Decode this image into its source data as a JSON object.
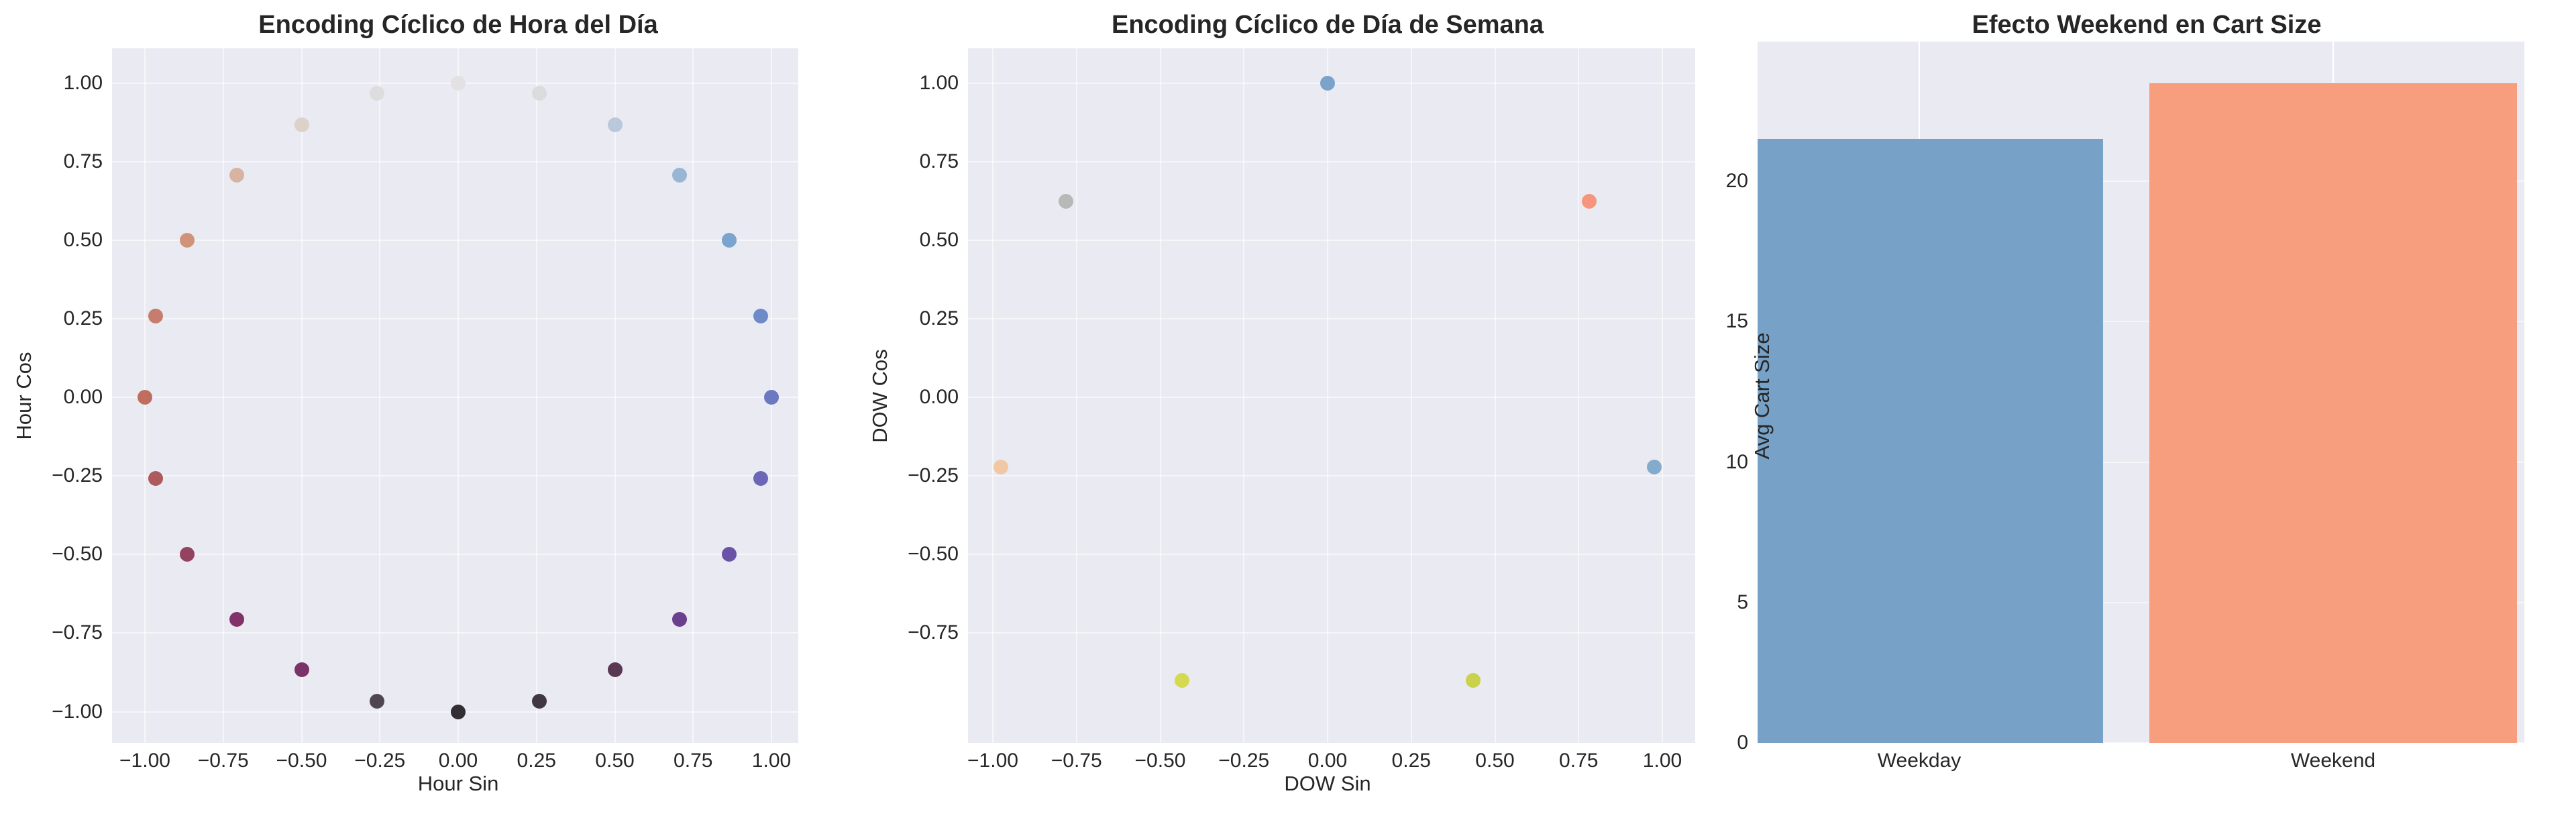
{
  "chart_data": [
    {
      "type": "scatter",
      "title": "Encoding Cíclico de Hora del Día",
      "xlabel": "Hour Sin",
      "ylabel": "Hour Cos",
      "xlim": [
        -1.1,
        1.1
      ],
      "ylim": [
        -1.1,
        1.1
      ],
      "xticks": [
        "−1.00",
        "−0.75",
        "−0.50",
        "−0.25",
        "0.00",
        "0.25",
        "0.50",
        "0.75",
        "1.00"
      ],
      "yticks": [
        "1.00",
        "0.75",
        "0.50",
        "0.25",
        "0.00",
        "−0.25",
        "−0.50",
        "−0.75",
        "−1.00"
      ],
      "grid": true,
      "colormap": "twilight (by hour 0-23)",
      "points": [
        {
          "hour": 0,
          "x": 0.0,
          "y": 1.0,
          "color": "#e2e0e0"
        },
        {
          "hour": 1,
          "x": 0.259,
          "y": 0.966,
          "color": "#d9d9da"
        },
        {
          "hour": 2,
          "x": 0.5,
          "y": 0.866,
          "color": "#b4c4d7"
        },
        {
          "hour": 3,
          "x": 0.707,
          "y": 0.707,
          "color": "#8fb0cf"
        },
        {
          "hour": 4,
          "x": 0.866,
          "y": 0.5,
          "color": "#6e9ccb"
        },
        {
          "hour": 5,
          "x": 0.966,
          "y": 0.259,
          "color": "#6181c2"
        },
        {
          "hour": 6,
          "x": 1.0,
          "y": 0.0,
          "color": "#5e6bbd"
        },
        {
          "hour": 7,
          "x": 0.966,
          "y": -0.259,
          "color": "#5d58b0"
        },
        {
          "hour": 8,
          "x": 0.866,
          "y": -0.5,
          "color": "#5b43a0"
        },
        {
          "hour": 9,
          "x": 0.707,
          "y": -0.707,
          "color": "#5c2c82"
        },
        {
          "hour": 10,
          "x": 0.5,
          "y": -0.866,
          "color": "#4a2440"
        },
        {
          "hour": 11,
          "x": 0.259,
          "y": -0.966,
          "color": "#2f2430"
        },
        {
          "hour": 12,
          "x": 0.0,
          "y": -1.0,
          "color": "#1f1a1f"
        },
        {
          "hour": 13,
          "x": -0.259,
          "y": -0.966,
          "color": "#3e3440"
        },
        {
          "hour": 14,
          "x": -0.5,
          "y": -0.866,
          "color": "#6e1f58"
        },
        {
          "hour": 15,
          "x": -0.707,
          "y": -0.707,
          "color": "#761e5a"
        },
        {
          "hour": 16,
          "x": -0.866,
          "y": -0.5,
          "color": "#8a3050"
        },
        {
          "hour": 17,
          "x": -0.966,
          "y": -0.259,
          "color": "#a64a4e"
        },
        {
          "hour": 18,
          "x": -1.0,
          "y": 0.0,
          "color": "#b8614f"
        },
        {
          "hour": 19,
          "x": -0.966,
          "y": 0.259,
          "color": "#c2705f"
        },
        {
          "hour": 20,
          "x": -0.866,
          "y": 0.5,
          "color": "#cd8a6c"
        },
        {
          "hour": 21,
          "x": -0.707,
          "y": 0.707,
          "color": "#d4ae98"
        },
        {
          "hour": 22,
          "x": -0.5,
          "y": 0.866,
          "color": "#dbcfc4"
        },
        {
          "hour": 23,
          "x": -0.259,
          "y": 0.966,
          "color": "#dcdcdc"
        }
      ]
    },
    {
      "type": "scatter",
      "title": "Encoding Cíclico de Día de Semana",
      "xlabel": "DOW Sin",
      "ylabel": "DOW Cos",
      "xlim": [
        -1.1,
        1.1
      ],
      "ylim": [
        -1.1,
        1.1
      ],
      "xticks": [
        "−1.00",
        "−0.75",
        "−0.50",
        "−0.25",
        "0.00",
        "0.25",
        "0.50",
        "0.75",
        "1.00"
      ],
      "yticks": [
        "1.00",
        "0.75",
        "0.50",
        "0.25",
        "0.00",
        "−0.25",
        "−0.50",
        "−0.75"
      ],
      "grid": true,
      "points": [
        {
          "dow": 0,
          "x": 0.0,
          "y": 1.0,
          "color": "#6e9bc8"
        },
        {
          "dow": 1,
          "x": 0.782,
          "y": 0.623,
          "color": "#f78c6e"
        },
        {
          "dow": 2,
          "x": 0.975,
          "y": -0.223,
          "color": "#7aa4c8"
        },
        {
          "dow": 3,
          "x": 0.434,
          "y": -0.901,
          "color": "#c7cf3a"
        },
        {
          "dow": 4,
          "x": -0.434,
          "y": -0.901,
          "color": "#d2d83e"
        },
        {
          "dow": 5,
          "x": -0.975,
          "y": -0.223,
          "color": "#f2c49c"
        },
        {
          "dow": 6,
          "x": -0.782,
          "y": 0.623,
          "color": "#b3b3b3"
        }
      ]
    },
    {
      "type": "bar",
      "title": "Efecto Weekend en Cart Size",
      "xlabel": "",
      "ylabel": "Avg Cart Size",
      "categories": [
        "Weekday",
        "Weekend"
      ],
      "values": [
        21.5,
        23.5
      ],
      "colors": [
        "#77a1c7",
        "#f79e7f"
      ],
      "ylim": [
        0,
        24.7
      ],
      "yticks": [
        "0",
        "5",
        "10",
        "15",
        "20"
      ],
      "grid": true
    }
  ]
}
